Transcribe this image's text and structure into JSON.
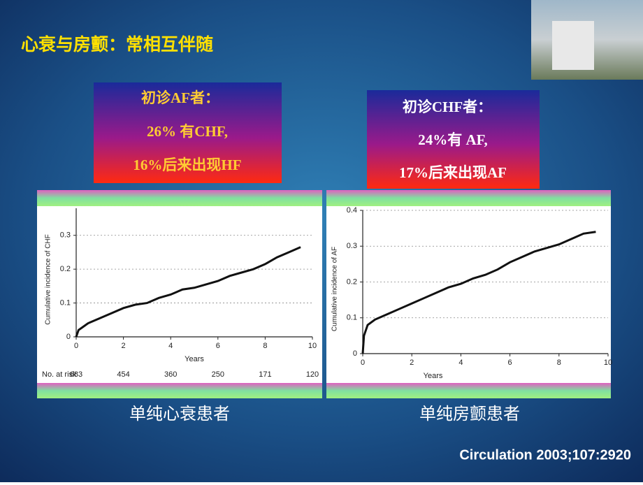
{
  "title": "心衰与房颤：常相互伴随",
  "boxes": [
    {
      "lines": [
        "初诊AF者：",
        "26% 有CHF,",
        "16%后来出现HF"
      ]
    },
    {
      "lines": [
        "初诊CHF者：",
        "24%有 AF,",
        "17%后来出现AF"
      ]
    }
  ],
  "captions": [
    "单纯心衰患者",
    "单纯房颤患者"
  ],
  "citation": "Circulation 2003;107:2920",
  "chart_data": [
    {
      "type": "line",
      "ylabel": "Cumulative incidence of CHF",
      "xlabel": "Years",
      "x": [
        0,
        0.1,
        0.3,
        0.5,
        1,
        1.5,
        2,
        2.5,
        3,
        3.5,
        4,
        4.5,
        5,
        5.5,
        6,
        6.5,
        7,
        7.5,
        8,
        8.5,
        9,
        9.5
      ],
      "values": [
        0,
        0.02,
        0.03,
        0.04,
        0.055,
        0.07,
        0.085,
        0.095,
        0.1,
        0.115,
        0.125,
        0.14,
        0.145,
        0.155,
        0.165,
        0.18,
        0.19,
        0.2,
        0.215,
        0.235,
        0.25,
        0.265
      ],
      "color": "#111111",
      "xlim": [
        0,
        10
      ],
      "xticks": [
        0,
        2,
        4,
        6,
        8,
        10
      ],
      "ylim": [
        0,
        0.38
      ],
      "yticks": [
        0,
        0.1,
        0.2,
        0.3
      ],
      "grid": true,
      "risk_label": "No. at risk",
      "at_risk": [
        683,
        454,
        360,
        250,
        171,
        120
      ]
    },
    {
      "type": "line",
      "ylabel": "Cumulative incidence of AF",
      "xlabel": "Years",
      "x": [
        0,
        0.05,
        0.2,
        0.5,
        1,
        1.5,
        2,
        2.5,
        3,
        3.5,
        4,
        4.5,
        5,
        5.5,
        6,
        6.5,
        7,
        7.5,
        8,
        8.5,
        9,
        9.5
      ],
      "values": [
        0,
        0.05,
        0.08,
        0.095,
        0.11,
        0.125,
        0.14,
        0.155,
        0.17,
        0.185,
        0.195,
        0.21,
        0.22,
        0.235,
        0.255,
        0.27,
        0.285,
        0.295,
        0.305,
        0.32,
        0.335,
        0.34
      ],
      "color": "#111111",
      "xlim": [
        0,
        10
      ],
      "xticks": [
        0,
        2,
        4,
        6,
        8,
        10
      ],
      "ylim": [
        0,
        0.4
      ],
      "yticks": [
        0,
        0.1,
        0.2,
        0.3,
        0.4
      ],
      "grid": true
    }
  ]
}
